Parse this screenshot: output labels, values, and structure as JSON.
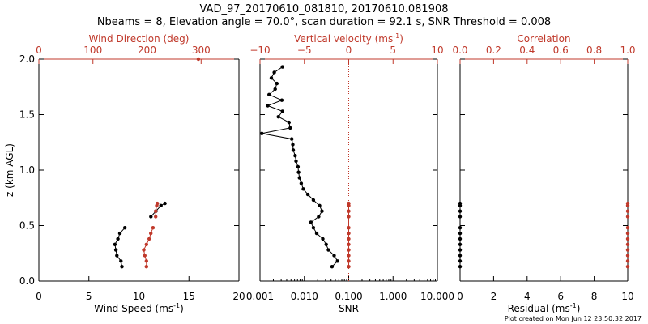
{
  "header": {
    "title_line1": "VAD_97_20170610_081810, 20170610.081908",
    "title_line2": "Nbeams = 8, Elevation angle = 70.0°, scan duration = 92.1 s, SNR Threshold = 0.008"
  },
  "footer": "Plot created on Mon Jun 12 23:50:32 2017",
  "colors": {
    "primary": "#000000",
    "secondary": "#c0392b"
  },
  "chart_data": [
    {
      "type": "line",
      "panel": "wind",
      "ylabel": "z (km AGL)",
      "ylim": [
        0,
        2
      ],
      "yticks": [
        "0.0",
        "0.5",
        "1.0",
        "1.5",
        "2.0"
      ],
      "bottom_axis": {
        "label": "Wind Speed (ms",
        "label_sup": "-1",
        "label_close": ")",
        "lim": [
          0,
          20
        ],
        "ticks": [
          "0",
          "5",
          "10",
          "15",
          "20"
        ]
      },
      "top_axis": {
        "label": "Wind Direction (deg)",
        "lim": [
          0,
          370
        ],
        "ticks": [
          "0",
          "100",
          "200",
          "300"
        ],
        "color": "red"
      },
      "series": [
        {
          "name": "Wind Speed",
          "axis": "bottom",
          "color": "black",
          "z": [
            0.13,
            0.18,
            0.23,
            0.28,
            0.33,
            0.38,
            0.43,
            0.48
          ],
          "values": [
            8.3,
            8.2,
            7.8,
            7.7,
            7.6,
            7.9,
            8.1,
            8.6
          ]
        },
        {
          "name": "Wind Direction",
          "axis": "top",
          "color": "red",
          "z": [
            0.13,
            0.18,
            0.23,
            0.28,
            0.33,
            0.38,
            0.43,
            0.48
          ],
          "values": [
            199,
            199,
            196,
            194,
            199,
            204,
            207,
            211
          ]
        },
        {
          "name": "Wind Speed",
          "axis": "bottom",
          "color": "black",
          "z": [
            0.58,
            0.63,
            0.68,
            0.7
          ],
          "values": [
            11.2,
            11.7,
            12.2,
            12.6
          ]
        },
        {
          "name": "Wind Direction",
          "axis": "top",
          "color": "red",
          "z": [
            0.58,
            0.63,
            0.68,
            0.7
          ],
          "values": [
            216,
            216,
            218,
            219
          ]
        },
        {
          "name": "Wind Direction (top)",
          "axis": "top",
          "color": "red",
          "z": [
            2.0
          ],
          "values": [
            295
          ],
          "markers_only": true
        }
      ]
    },
    {
      "type": "line",
      "panel": "snr",
      "ylim": [
        0,
        2
      ],
      "bottom_axis": {
        "label": "SNR",
        "scale": "log",
        "lim": [
          0.001,
          10
        ],
        "ticks": [
          "0.001",
          "0.010",
          "0.100",
          "1.000",
          "10.000"
        ],
        "tick_values": [
          0.001,
          0.01,
          0.1,
          1,
          10
        ]
      },
      "top_axis": {
        "label": "Vertical velocity (ms",
        "label_sup": "-1",
        "label_close": ")",
        "lim": [
          -10,
          10
        ],
        "ticks": [
          "−10",
          "−5",
          "0",
          "5",
          "10"
        ],
        "color": "red"
      },
      "reference_line": {
        "axis": "top",
        "value": 0
      },
      "series": [
        {
          "name": "SNR",
          "axis": "bottom",
          "color": "black",
          "z": [
            0.13,
            0.18,
            0.23,
            0.28,
            0.33,
            0.38,
            0.43,
            0.48,
            0.53,
            0.58,
            0.63,
            0.68,
            0.73,
            0.78,
            0.83,
            0.88,
            0.93,
            0.98,
            1.03,
            1.08,
            1.13,
            1.18,
            1.23,
            1.28,
            1.33,
            1.38,
            1.43,
            1.48,
            1.53,
            1.58,
            1.63,
            1.68,
            1.73,
            1.78,
            1.83,
            1.88,
            1.93
          ],
          "values": [
            0.042,
            0.056,
            0.047,
            0.035,
            0.031,
            0.026,
            0.019,
            0.016,
            0.014,
            0.021,
            0.025,
            0.022,
            0.016,
            0.012,
            0.0095,
            0.0085,
            0.0078,
            0.0074,
            0.0072,
            0.0065,
            0.0062,
            0.0056,
            0.0055,
            0.0052,
            0.0011,
            0.0048,
            0.0045,
            0.0026,
            0.0032,
            0.0015,
            0.0031,
            0.0016,
            0.0022,
            0.0024,
            0.0018,
            0.0021,
            0.0032
          ]
        },
        {
          "name": "Vertical velocity",
          "axis": "top",
          "color": "red",
          "z": [
            0.13,
            0.18,
            0.23,
            0.28,
            0.33,
            0.38,
            0.43,
            0.48,
            0.58,
            0.63,
            0.68,
            0.7
          ],
          "values": [
            0,
            0,
            0,
            0,
            0,
            0,
            0,
            0,
            0,
            0,
            0,
            0
          ]
        }
      ]
    },
    {
      "type": "scatter",
      "panel": "residual",
      "ylim": [
        0,
        2
      ],
      "bottom_axis": {
        "label": "Residual (ms",
        "label_sup": "-1",
        "label_close": ")",
        "lim": [
          0,
          10
        ],
        "ticks": [
          "0",
          "2",
          "4",
          "6",
          "8",
          "10"
        ]
      },
      "top_axis": {
        "label": "Correlation",
        "lim": [
          0,
          1
        ],
        "ticks": [
          "0.0",
          "0.2",
          "0.4",
          "0.6",
          "0.8",
          "1.0"
        ],
        "color": "red"
      },
      "series": [
        {
          "name": "Residual",
          "axis": "bottom",
          "color": "black",
          "z": [
            0.13,
            0.18,
            0.23,
            0.28,
            0.33,
            0.38,
            0.43,
            0.48,
            0.58,
            0.63,
            0.68,
            0.7
          ],
          "values": [
            0,
            0,
            0,
            0,
            0,
            0,
            0,
            0,
            0,
            0,
            0,
            0
          ]
        },
        {
          "name": "Correlation",
          "axis": "top",
          "color": "red",
          "z": [
            0.13,
            0.18,
            0.23,
            0.28,
            0.33,
            0.38,
            0.43,
            0.48,
            0.58,
            0.63,
            0.68,
            0.7
          ],
          "values": [
            1,
            1,
            1,
            1,
            1,
            1,
            1,
            1,
            1,
            1,
            1,
            1
          ]
        }
      ]
    }
  ]
}
